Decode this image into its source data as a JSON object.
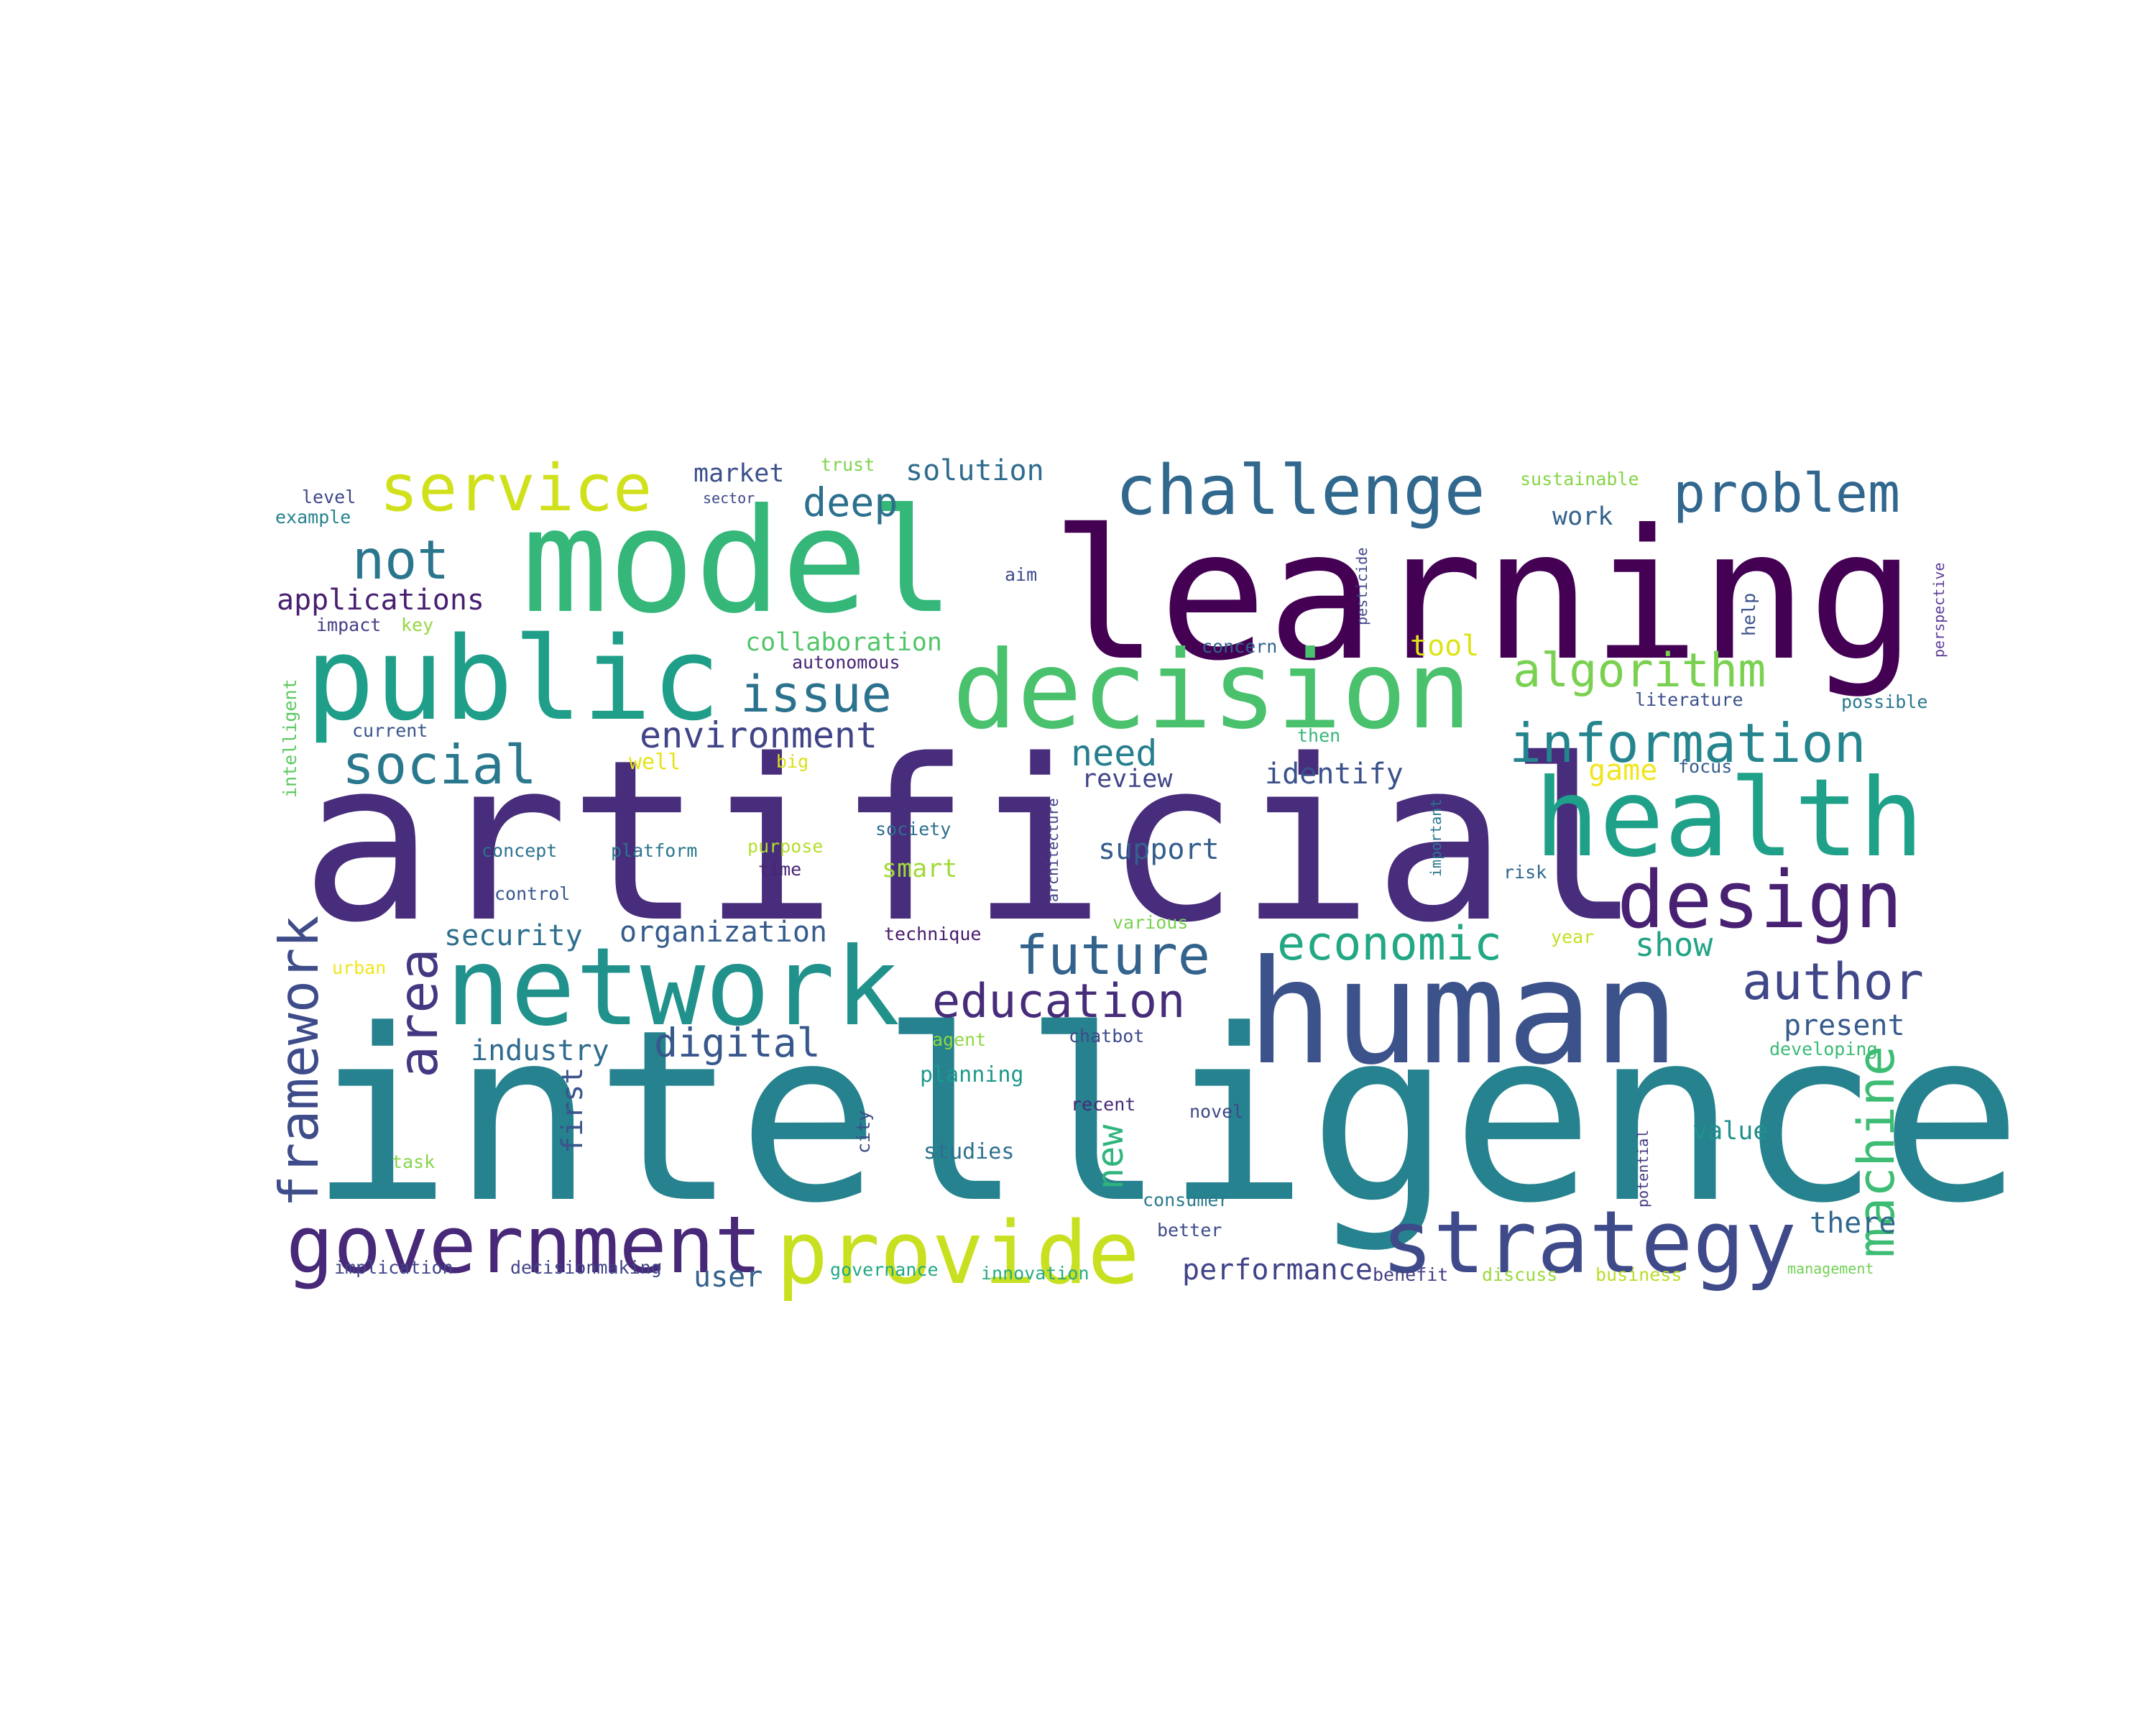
{
  "words": [
    {
      "text": "artificial",
      "color": "#472d7b"
    },
    {
      "text": "intelligence",
      "color": "#26828e"
    },
    {
      "text": "learning",
      "color": "#440154"
    },
    {
      "text": "model",
      "color": "#35b779"
    },
    {
      "text": "human",
      "color": "#3b528b"
    },
    {
      "text": "decision",
      "color": "#4ac16d"
    },
    {
      "text": "public",
      "color": "#1f9e89"
    },
    {
      "text": "network",
      "color": "#21918c"
    },
    {
      "text": "health",
      "color": "#1fa088"
    },
    {
      "text": "strategy",
      "color": "#3e4a89"
    },
    {
      "text": "government",
      "color": "#482878"
    },
    {
      "text": "provide",
      "color": "#c8e020"
    },
    {
      "text": "design",
      "color": "#482173"
    },
    {
      "text": "challenge",
      "color": "#31688e"
    },
    {
      "text": "service",
      "color": "#d0e11c"
    },
    {
      "text": "problem",
      "color": "#31668e"
    },
    {
      "text": "information",
      "color": "#25858e"
    },
    {
      "text": "social",
      "color": "#2a788e"
    },
    {
      "text": "future",
      "color": "#33638d"
    },
    {
      "text": "economic",
      "color": "#22a884"
    },
    {
      "text": "education",
      "color": "#472c7a"
    },
    {
      "text": "author",
      "color": "#3f4788"
    },
    {
      "text": "machine",
      "color": "#3dbc74"
    },
    {
      "text": "framework",
      "color": "#3e4c8a"
    },
    {
      "text": "area",
      "color": "#453781"
    },
    {
      "text": "algorithm",
      "color": "#7ad151"
    },
    {
      "text": "issue",
      "color": "#2c728e"
    },
    {
      "text": "not",
      "color": "#2a768e"
    },
    {
      "text": "environment",
      "color": "#414487"
    },
    {
      "text": "deep",
      "color": "#2d708e"
    },
    {
      "text": "applications",
      "color": "#481f70"
    },
    {
      "text": "digital",
      "color": "#38588c"
    },
    {
      "text": "need",
      "color": "#277f8e"
    },
    {
      "text": "review",
      "color": "#404588"
    },
    {
      "text": "solution",
      "color": "#2f6c8e"
    },
    {
      "text": "market",
      "color": "#3c508b"
    },
    {
      "text": "collaboration",
      "color": "#52c569"
    },
    {
      "text": "identify",
      "color": "#3b518b"
    },
    {
      "text": "security",
      "color": "#2e6f8e"
    },
    {
      "text": "organization",
      "color": "#365c8d"
    },
    {
      "text": "industry",
      "color": "#2f6b8e"
    },
    {
      "text": "support",
      "color": "#355e8d"
    },
    {
      "text": "smart",
      "color": "#a0da39"
    },
    {
      "text": "show",
      "color": "#20a486"
    },
    {
      "text": "present",
      "color": "#375b8d"
    },
    {
      "text": "value",
      "color": "#21908d"
    },
    {
      "text": "there",
      "color": "#31678e"
    },
    {
      "text": "performance",
      "color": "#404387"
    },
    {
      "text": "user",
      "color": "#33628d"
    },
    {
      "text": "new",
      "color": "#2fb47c"
    },
    {
      "text": "first",
      "color": "#3a548c"
    },
    {
      "text": "work",
      "color": "#34618d"
    },
    {
      "text": "tool",
      "color": "#dde318"
    },
    {
      "text": "game",
      "color": "#f1e51d"
    },
    {
      "text": "well",
      "color": "#e5e419"
    },
    {
      "text": "year",
      "color": "#c5e021"
    },
    {
      "text": "sustainable",
      "color": "#86d549"
    },
    {
      "text": "trust",
      "color": "#7fd34e"
    },
    {
      "text": "sector",
      "color": "#3f4889"
    },
    {
      "text": "level",
      "color": "#3f4889"
    },
    {
      "text": "example",
      "color": "#26828e"
    },
    {
      "text": "impact",
      "color": "#433e85"
    },
    {
      "text": "key",
      "color": "#95d840"
    },
    {
      "text": "intelligent",
      "color": "#5ec962"
    },
    {
      "text": "current",
      "color": "#3a548c"
    },
    {
      "text": "big",
      "color": "#d8e219"
    },
    {
      "text": "concept",
      "color": "#2c738e"
    },
    {
      "text": "platform",
      "color": "#2a768e"
    },
    {
      "text": "purpose",
      "color": "#b5de2b"
    },
    {
      "text": "time",
      "color": "#482475"
    },
    {
      "text": "society",
      "color": "#2e6e8e"
    },
    {
      "text": "control",
      "color": "#39568c"
    },
    {
      "text": "technique",
      "color": "#481b6d"
    },
    {
      "text": "urban",
      "color": "#f1e51d"
    },
    {
      "text": "agent",
      "color": "#90d743"
    },
    {
      "text": "chatbot",
      "color": "#3e4a89"
    },
    {
      "text": "planning",
      "color": "#1f988b"
    },
    {
      "text": "recent",
      "color": "#482878"
    },
    {
      "text": "novel",
      "color": "#3e4989"
    },
    {
      "text": "city",
      "color": "#3d4d8a"
    },
    {
      "text": "studies",
      "color": "#2d708e"
    },
    {
      "text": "task",
      "color": "#86d549"
    },
    {
      "text": "implication",
      "color": "#404588"
    },
    {
      "text": "decisionmaking",
      "color": "#414487"
    },
    {
      "text": "governance",
      "color": "#22a785"
    },
    {
      "text": "innovation",
      "color": "#25ab82"
    },
    {
      "text": "better",
      "color": "#3e4a89"
    },
    {
      "text": "consumer",
      "color": "#29798e"
    },
    {
      "text": "benefit",
      "color": "#433e85"
    },
    {
      "text": "discuss",
      "color": "#9bd93c"
    },
    {
      "text": "business",
      "color": "#b8de29"
    },
    {
      "text": "management",
      "color": "#73d056"
    },
    {
      "text": "developing",
      "color": "#3bbb75"
    },
    {
      "text": "potential",
      "color": "#443983"
    },
    {
      "text": "literature",
      "color": "#3b518b"
    },
    {
      "text": "possible",
      "color": "#2a788e"
    },
    {
      "text": "focus",
      "color": "#365d8d"
    },
    {
      "text": "risk",
      "color": "#31688e"
    },
    {
      "text": "important",
      "color": "#2a768e"
    },
    {
      "text": "architecture",
      "color": "#424186"
    },
    {
      "text": "various",
      "color": "#7ad151"
    },
    {
      "text": "autonomous",
      "color": "#482475"
    },
    {
      "text": "aim",
      "color": "#3e4a89"
    },
    {
      "text": "concern",
      "color": "#33638d"
    },
    {
      "text": "then",
      "color": "#35b779"
    },
    {
      "text": "pesticide",
      "color": "#404588"
    },
    {
      "text": "help",
      "color": "#3b528b"
    },
    {
      "text": "perspective",
      "color": "#5e3c99"
    }
  ]
}
